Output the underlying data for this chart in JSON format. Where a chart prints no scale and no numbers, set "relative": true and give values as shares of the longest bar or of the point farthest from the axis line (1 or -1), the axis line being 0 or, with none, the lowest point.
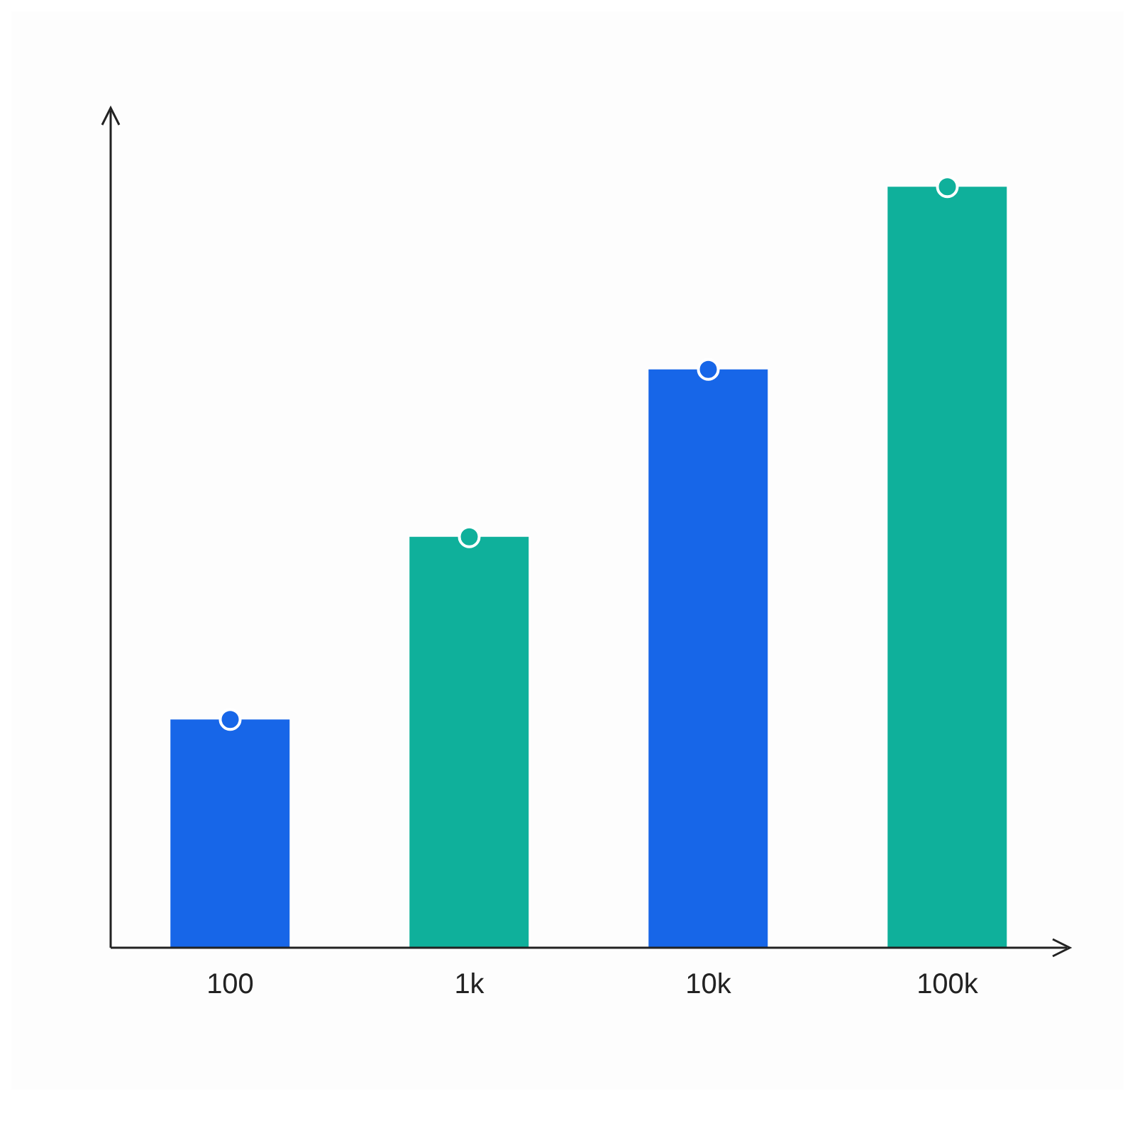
{
  "chart_data": {
    "type": "bar",
    "relative": true,
    "categories": [
      "100",
      "1k",
      "10k",
      "100k"
    ],
    "series": [
      {
        "values": [
          0.3,
          0.54,
          0.76,
          1
        ],
        "colors": [
          "#1766e8",
          "#0fb09b",
          "#1766e8",
          "#0fb09b"
        ]
      },
      {
        "type": "scatter",
        "values": [
          0.3,
          0.54,
          0.76,
          1
        ],
        "colors": [
          "#1766e8",
          "#0fb09b",
          "#1766e8",
          "#0fb09b"
        ]
      }
    ],
    "grid": false
  }
}
